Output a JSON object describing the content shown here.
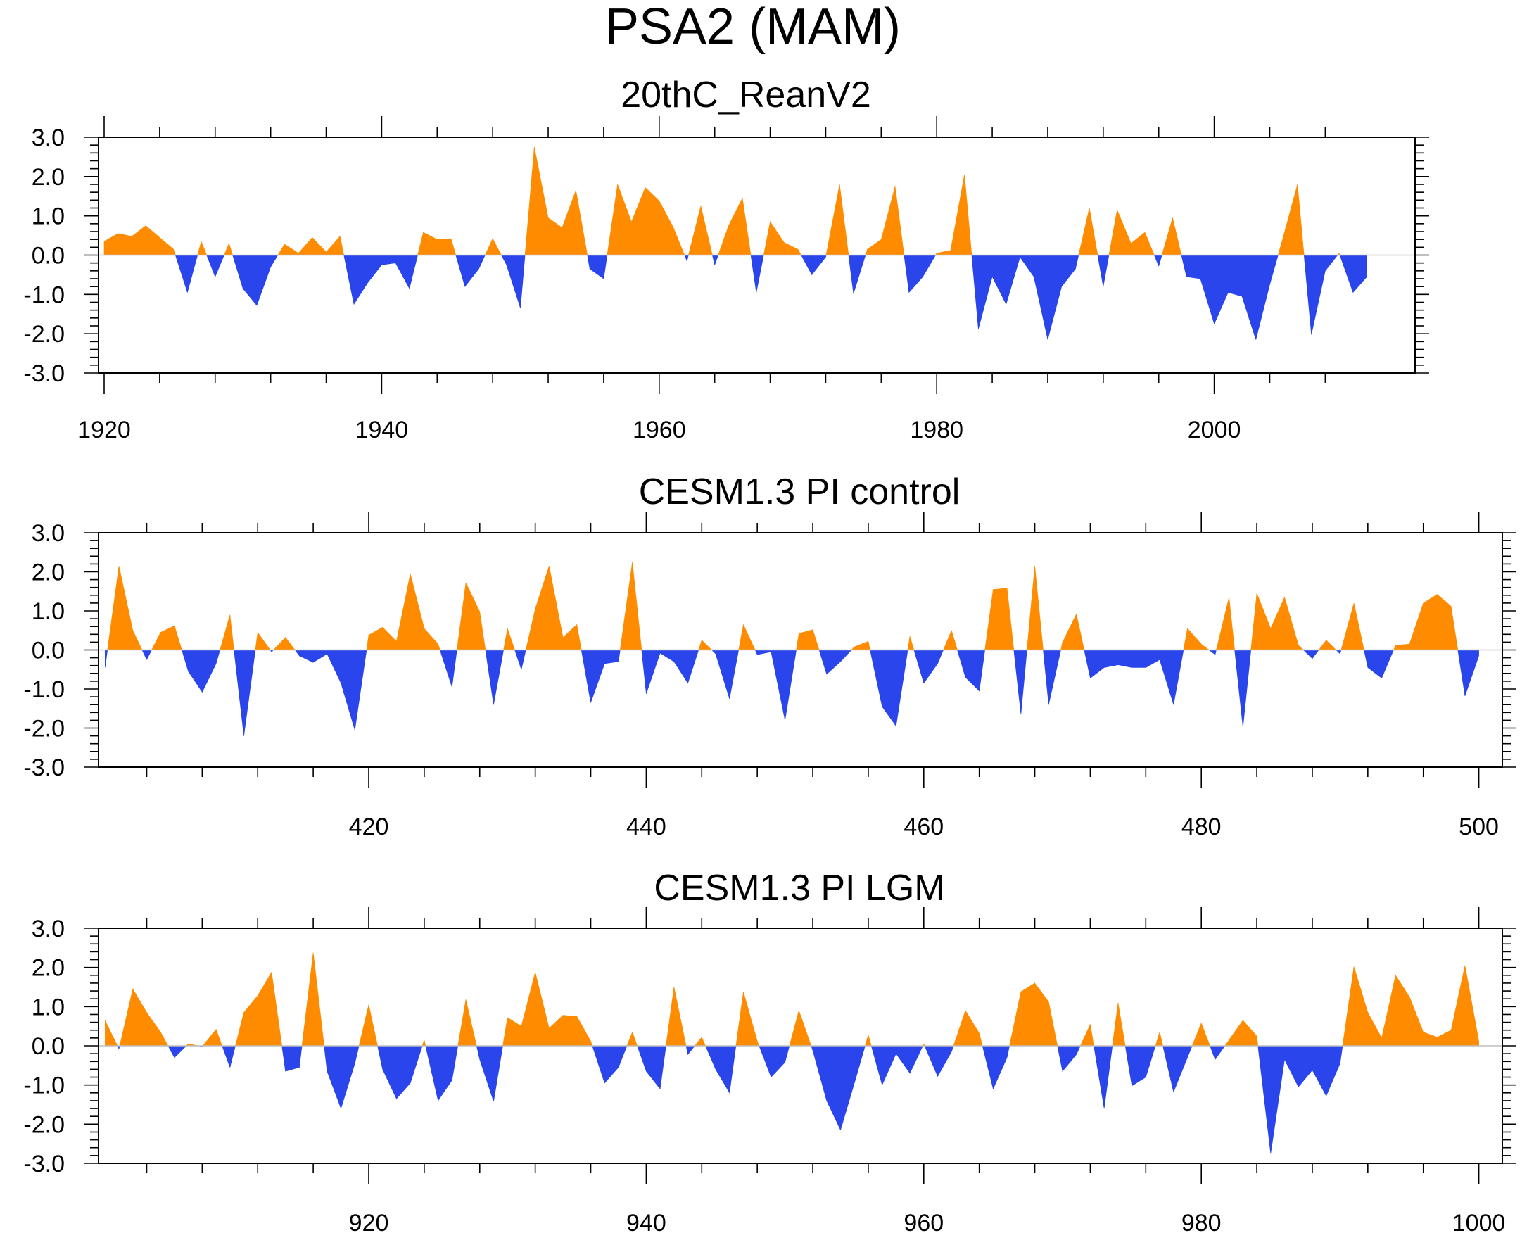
{
  "title": "PSA2 (MAM)",
  "colors": {
    "positive": "#FF8C00",
    "negative": "#2945EB",
    "axis": "#000000"
  },
  "chart_data": [
    {
      "type": "area",
      "title": "20thC_ReanV2",
      "xlabel": "",
      "ylabel": "",
      "xlim": [
        1920,
        2011
      ],
      "ylim": [
        -3,
        3
      ],
      "xticks": [
        1920,
        1940,
        1960,
        1980,
        2000
      ],
      "xtick_labels": [
        "1920",
        "1940",
        "1960",
        "1980",
        "2000"
      ],
      "yticks": [
        -3,
        -2,
        -1,
        0,
        1,
        2,
        3
      ],
      "ytick_labels": [
        "-3.0",
        "-2.0",
        "-1.0",
        "0.0",
        "1.0",
        "2.0",
        "3.0"
      ],
      "x": [
        1920,
        1921,
        1922,
        1923,
        1924,
        1925,
        1926,
        1927,
        1928,
        1929,
        1930,
        1931,
        1932,
        1933,
        1934,
        1935,
        1936,
        1937,
        1938,
        1939,
        1940,
        1941,
        1942,
        1943,
        1944,
        1945,
        1946,
        1947,
        1948,
        1949,
        1950,
        1951,
        1952,
        1953,
        1954,
        1955,
        1956,
        1957,
        1958,
        1959,
        1960,
        1961,
        1962,
        1963,
        1964,
        1965,
        1966,
        1967,
        1968,
        1969,
        1970,
        1971,
        1972,
        1973,
        1974,
        1975,
        1976,
        1977,
        1978,
        1979,
        1980,
        1981,
        1982,
        1983,
        1984,
        1985,
        1986,
        1987,
        1988,
        1989,
        1990,
        1991,
        1992,
        1993,
        1994,
        1995,
        1996,
        1997,
        1998,
        1999,
        2000,
        2001,
        2002,
        2003,
        2004,
        2005,
        2006,
        2007,
        2008,
        2009,
        2010,
        2011
      ],
      "values": [
        0.35,
        0.55,
        0.48,
        0.75,
        0.45,
        0.15,
        -0.95,
        0.35,
        -0.55,
        0.3,
        -0.85,
        -1.28,
        -0.3,
        0.28,
        0.05,
        0.45,
        0.08,
        0.48,
        -1.25,
        -0.7,
        -0.25,
        -0.2,
        -0.85,
        0.58,
        0.4,
        0.42,
        -0.8,
        -0.35,
        0.42,
        -0.25,
        -1.35,
        2.75,
        0.95,
        0.7,
        1.65,
        -0.35,
        -0.6,
        1.8,
        0.85,
        1.72,
        1.38,
        0.72,
        -0.15,
        1.25,
        -0.25,
        0.75,
        1.45,
        -0.95,
        0.85,
        0.32,
        0.15,
        -0.5,
        -0.05,
        1.8,
        -0.98,
        0.15,
        0.4,
        1.75,
        -0.95,
        -0.55,
        0.05,
        0.12,
        2.05,
        -1.88,
        -0.55,
        -1.25,
        -0.05,
        -0.55,
        -2.15,
        -0.8,
        -0.35,
        1.2,
        -0.8,
        1.15,
        0.3,
        0.58,
        -0.28,
        0.95,
        -0.55,
        -0.6,
        -1.75,
        -0.95,
        -1.05,
        -2.15,
        -0.75,
        0.5,
        1.8,
        -2.02,
        -0.4,
        0.05,
        -0.95,
        -0.55
      ]
    },
    {
      "type": "area",
      "title": "CESM1.3 PI control",
      "xlabel": "",
      "ylabel": "",
      "xlim": [
        401,
        501
      ],
      "ylim": [
        -3,
        3
      ],
      "xticks": [
        420,
        440,
        460,
        480,
        500
      ],
      "xtick_labels": [
        "420",
        "440",
        "460",
        "480",
        "500"
      ],
      "yticks": [
        -3,
        -2,
        -1,
        0,
        1,
        2,
        3
      ],
      "ytick_labels": [
        "-3.0",
        "-2.0",
        "-1.0",
        "0.0",
        "1.0",
        "2.0",
        "3.0"
      ],
      "x": [
        401,
        402,
        403,
        404,
        405,
        406,
        407,
        408,
        409,
        410,
        411,
        412,
        413,
        414,
        415,
        416,
        417,
        418,
        419,
        420,
        421,
        422,
        423,
        424,
        425,
        426,
        427,
        428,
        429,
        430,
        431,
        432,
        433,
        434,
        435,
        436,
        437,
        438,
        439,
        440,
        441,
        442,
        443,
        444,
        445,
        446,
        447,
        448,
        449,
        450,
        451,
        452,
        453,
        454,
        455,
        456,
        457,
        458,
        459,
        460,
        461,
        462,
        463,
        464,
        465,
        466,
        467,
        468,
        469,
        470,
        471,
        472,
        473,
        474,
        475,
        476,
        477,
        478,
        479,
        480,
        481,
        482,
        483,
        484,
        485,
        486,
        487,
        488,
        489,
        490,
        491,
        492,
        493,
        494,
        495,
        496,
        497,
        498,
        499,
        500
      ],
      "values": [
        -0.45,
        2.15,
        0.5,
        -0.25,
        0.45,
        0.62,
        -0.55,
        -1.08,
        -0.35,
        0.9,
        -2.2,
        0.45,
        -0.05,
        0.32,
        -0.15,
        -0.32,
        -0.1,
        -0.85,
        -2.05,
        0.38,
        0.58,
        0.22,
        1.95,
        0.55,
        0.15,
        -0.95,
        1.72,
        0.98,
        -1.4,
        0.55,
        -0.5,
        1.05,
        2.15,
        0.32,
        0.65,
        -1.35,
        -0.35,
        -0.3,
        2.25,
        -1.12,
        -0.08,
        -0.3,
        -0.85,
        0.25,
        -0.1,
        -1.25,
        0.65,
        -0.12,
        -0.05,
        -1.8,
        0.42,
        0.52,
        -0.62,
        -0.3,
        0.08,
        0.22,
        -1.45,
        -1.95,
        0.35,
        -0.85,
        -0.35,
        0.5,
        -0.7,
        -1.05,
        1.55,
        1.58,
        -1.65,
        2.15,
        -1.4,
        0.2,
        0.92,
        -0.72,
        -0.45,
        -0.38,
        -0.45,
        -0.45,
        -0.25,
        -1.4,
        0.55,
        0.15,
        -0.12,
        1.35,
        -1.98,
        1.45,
        0.55,
        1.35,
        0.12,
        -0.22,
        0.25,
        -0.1,
        1.2,
        -0.45,
        -0.72,
        0.12,
        0.15,
        1.2,
        1.42,
        1.12,
        -1.18,
        -0.15
      ]
    },
    {
      "type": "area",
      "title": "CESM1.3 PI LGM",
      "xlabel": "",
      "ylabel": "",
      "xlim": [
        901,
        1001
      ],
      "ylim": [
        -3,
        3
      ],
      "xticks": [
        920,
        940,
        960,
        980,
        1000
      ],
      "xtick_labels": [
        "920",
        "940",
        "960",
        "980",
        "1000"
      ],
      "yticks": [
        -3,
        -2,
        -1,
        0,
        1,
        2,
        3
      ],
      "ytick_labels": [
        "-3.0",
        "-2.0",
        "-1.0",
        "0.0",
        "1.0",
        "2.0",
        "3.0"
      ],
      "x": [
        901,
        902,
        903,
        904,
        905,
        906,
        907,
        908,
        909,
        910,
        911,
        912,
        913,
        914,
        915,
        916,
        917,
        918,
        919,
        920,
        921,
        922,
        923,
        924,
        925,
        926,
        927,
        928,
        929,
        930,
        931,
        932,
        933,
        934,
        935,
        936,
        937,
        938,
        939,
        940,
        941,
        942,
        943,
        944,
        945,
        946,
        947,
        948,
        949,
        950,
        951,
        952,
        953,
        954,
        955,
        956,
        957,
        958,
        959,
        960,
        961,
        962,
        963,
        964,
        965,
        966,
        967,
        968,
        969,
        970,
        971,
        972,
        973,
        974,
        975,
        976,
        977,
        978,
        979,
        980,
        981,
        982,
        983,
        984,
        985,
        986,
        987,
        988,
        989,
        990,
        991,
        992,
        993,
        994,
        995,
        996,
        997,
        998,
        999,
        1000
      ],
      "values": [
        0.65,
        -0.08,
        1.45,
        0.85,
        0.35,
        -0.3,
        0.05,
        -0.02,
        0.42,
        -0.55,
        0.85,
        1.28,
        1.88,
        -0.65,
        -0.55,
        2.38,
        -0.65,
        -1.6,
        -0.45,
        1.05,
        -0.6,
        -1.35,
        -0.95,
        0.15,
        -1.4,
        -0.88,
        1.18,
        -0.35,
        -1.42,
        0.72,
        0.5,
        1.88,
        0.45,
        0.78,
        0.75,
        0.12,
        -0.95,
        -0.55,
        0.35,
        -0.65,
        -1.1,
        1.5,
        -0.22,
        0.22,
        -0.6,
        -1.2,
        1.38,
        0.12,
        -0.8,
        -0.42,
        0.9,
        -0.12,
        -1.4,
        -2.15,
        -0.95,
        0.28,
        -1.0,
        -0.2,
        -0.7,
        0.05,
        -0.78,
        -0.15,
        0.9,
        0.32,
        -1.1,
        -0.3,
        1.38,
        1.6,
        1.12,
        -0.65,
        -0.22,
        0.55,
        -1.6,
        1.1,
        -1.02,
        -0.8,
        0.35,
        -1.18,
        -0.3,
        0.58,
        -0.35,
        0.15,
        0.65,
        0.25,
        -2.75,
        -0.35,
        -1.05,
        -0.62,
        -1.28,
        -0.45,
        2.02,
        0.85,
        0.2,
        1.8,
        1.25,
        0.35,
        0.22,
        0.4,
        2.05,
        0.12
      ]
    }
  ]
}
